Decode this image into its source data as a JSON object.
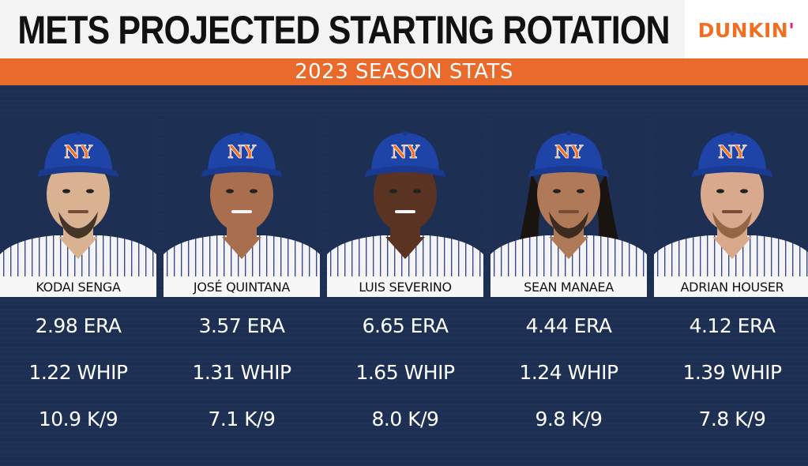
{
  "header": {
    "title": "METS PROJECTED STARTING ROTATION",
    "sponsor": "DUNKIN'",
    "subtitle": "2023 SEASON STATS"
  },
  "colors": {
    "accent_orange": "#e96a2a",
    "panel_navy": "#1d2f52",
    "cap_blue": "#1f44a8",
    "logo_orange": "#f26f21"
  },
  "players": [
    {
      "name": "KODAI SENGA",
      "era": "2.98 ERA",
      "whip": "1.22 WHIP",
      "k9": "10.9 K/9"
    },
    {
      "name": "JOSÉ QUINTANA",
      "era": "3.57 ERA",
      "whip": "1.31 WHIP",
      "k9": "7.1 K/9"
    },
    {
      "name": "LUIS SEVERINO",
      "era": "6.65 ERA",
      "whip": "1.65 WHIP",
      "k9": "8.0 K/9"
    },
    {
      "name": "SEAN MANAEA",
      "era": "4.44 ERA",
      "whip": "1.24 WHIP",
      "k9": "9.8 K/9"
    },
    {
      "name": "ADRIAN HOUSER",
      "era": "4.12 ERA",
      "whip": "1.39 WHIP",
      "k9": "7.8 K/9"
    }
  ]
}
